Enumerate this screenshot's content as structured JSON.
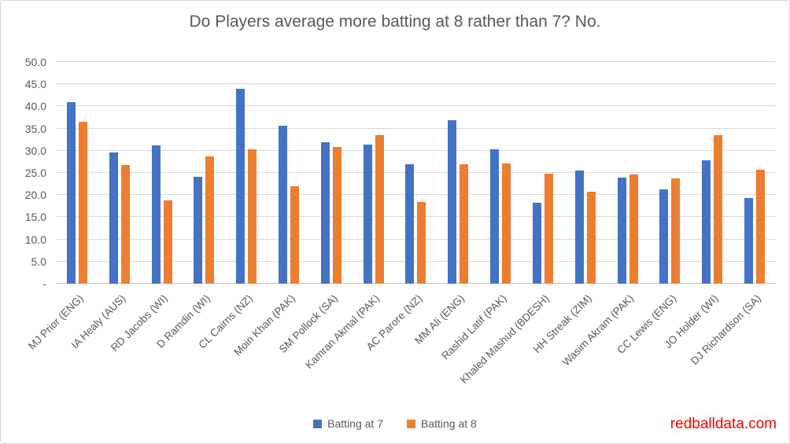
{
  "chart_data": {
    "type": "bar",
    "title": "Do Players average more batting at 8 rather than 7? No.",
    "categories": [
      "MJ Prior (ENG)",
      "IA Healy (AUS)",
      "RD Jacobs (WI)",
      "D Ramdin (WI)",
      "CL Cairns (NZ)",
      "Moin Khan (PAK)",
      "SM Pollock (SA)",
      "Kamran Akmal (PAK)",
      "AC Parore (NZ)",
      "MM Ali (ENG)",
      "Rashid Latif (PAK)",
      "Khaled Mashud (BDESH)",
      "HH Streak (ZIM)",
      "Wasim Akram (PAK)",
      "CC Lewis (ENG)",
      "JO Holder (WI)",
      "DJ Richardson (SA)"
    ],
    "series": [
      {
        "name": "Batting at 7",
        "color": "#4472C4",
        "values": [
          40.9,
          29.6,
          31.2,
          24.2,
          44.0,
          35.6,
          32.0,
          31.3,
          26.9,
          36.8,
          30.3,
          18.3,
          25.5,
          24.0,
          21.2,
          27.8,
          19.3
        ]
      },
      {
        "name": "Batting at 8",
        "color": "#ED7D31",
        "values": [
          36.5,
          26.8,
          18.8,
          28.8,
          30.4,
          22.0,
          30.9,
          33.5,
          18.5,
          27.0,
          27.1,
          24.9,
          20.7,
          24.6,
          23.7,
          33.5,
          25.7
        ]
      }
    ],
    "ylim": [
      0,
      50
    ],
    "ytick_step": 5,
    "ytick_labels": [
      "-",
      "5.0",
      "10.0",
      "15.0",
      "20.0",
      "25.0",
      "30.0",
      "35.0",
      "40.0",
      "45.0",
      "50.0"
    ],
    "grid": true,
    "legend_position": "bottom",
    "gridline_color": "#D9D9D9",
    "text_color": "#595959"
  },
  "watermark": {
    "text": "redballdata.com",
    "color": "#FF0000"
  }
}
